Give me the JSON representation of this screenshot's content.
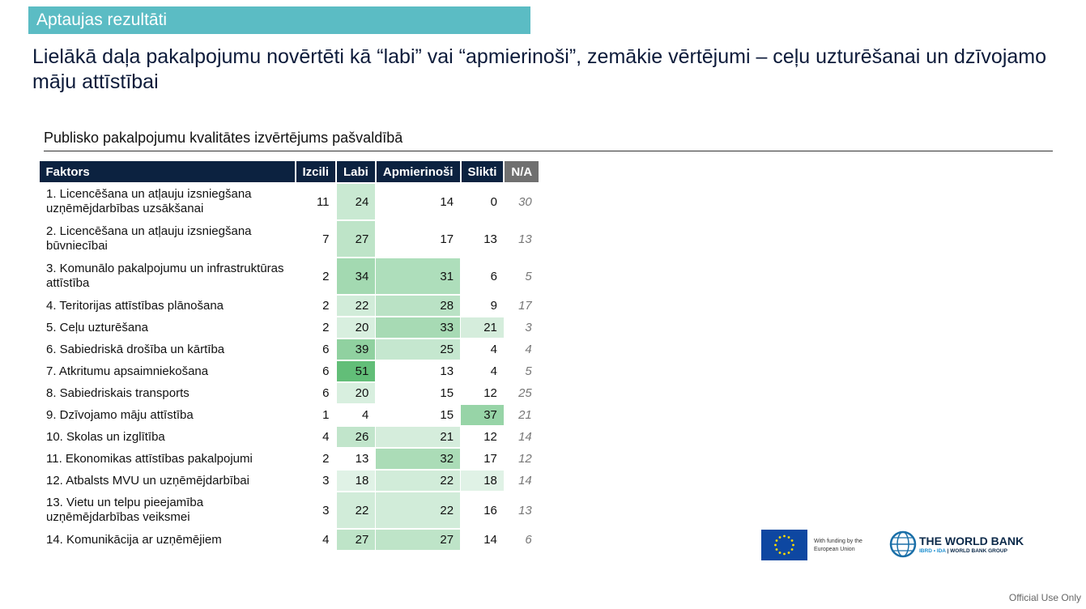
{
  "section_label": "Aptaujas rezultāti",
  "title": "Lielākā daļa pakalpojumu novērtēti kā “labi” vai “apmierinoši”, zemākie vērtējumi – ceļu uzturēšanai un dzīvojamo māju attīstībai",
  "subtitle": "Publisko pakalpojumu kvalitātes izvērtējums pašvaldībā",
  "table": {
    "headers": [
      "Faktors",
      "Izcili",
      "Labi",
      "Apmierinoši",
      "Slikti",
      "N/A"
    ],
    "rows": [
      {
        "f": "1. Licencēšana un atļauju izsniegšana uzņēmējdarbības uzsākšanai",
        "v": [
          11,
          24,
          14,
          0,
          30
        ],
        "two": true
      },
      {
        "f": "2. Licencēšana un atļauju izsniegšana būvniecībai",
        "v": [
          7,
          27,
          17,
          13,
          13
        ],
        "two": true
      },
      {
        "f": "3. Komunālo pakalpojumu un infrastruktūras attīstība",
        "v": [
          2,
          34,
          31,
          6,
          5
        ],
        "two": true
      },
      {
        "f": "4. Teritorijas attīstības plānošana",
        "v": [
          2,
          22,
          28,
          9,
          17
        ]
      },
      {
        "f": "5. Ceļu uzturēšana",
        "v": [
          2,
          20,
          33,
          21,
          3
        ]
      },
      {
        "f": "6. Sabiedriskā drošība un kārtība",
        "v": [
          6,
          39,
          25,
          4,
          4
        ]
      },
      {
        "f": "7. Atkritumu apsaimniekošana",
        "v": [
          6,
          51,
          13,
          4,
          5
        ]
      },
      {
        "f": "8. Sabiedriskais transports",
        "v": [
          6,
          20,
          15,
          12,
          25
        ]
      },
      {
        "f": "9. Dzīvojamo māju attīstība",
        "v": [
          1,
          4,
          15,
          37,
          21
        ]
      },
      {
        "f": "10. Skolas un izglītība",
        "v": [
          4,
          26,
          21,
          12,
          14
        ]
      },
      {
        "f": "11. Ekonomikas attīstības pakalpojumi",
        "v": [
          2,
          13,
          32,
          17,
          12
        ]
      },
      {
        "f": "12. Atbalsts MVU un uzņēmējdarbībai",
        "v": [
          3,
          18,
          22,
          18,
          14
        ]
      },
      {
        "f": "13. Vietu un telpu pieejamība uzņēmējdarbības veiksmei",
        "v": [
          3,
          22,
          22,
          16,
          13
        ],
        "two": true
      },
      {
        "f": "14. Komunikācija ar uzņēmējiem",
        "v": [
          4,
          27,
          27,
          14,
          6
        ]
      }
    ]
  },
  "logos": {
    "eu_text_1": "With funding by the",
    "eu_text_2": "European Union",
    "wb_name": "THE WORLD BANK",
    "wb_sub_1": "IBRD • IDA",
    "wb_sub_2": " | WORLD BANK GROUP"
  },
  "footer": "Official Use Only",
  "colors": {
    "header": "#0c2240",
    "accent": "#5bbcc4",
    "heat": "#5fbf73"
  }
}
